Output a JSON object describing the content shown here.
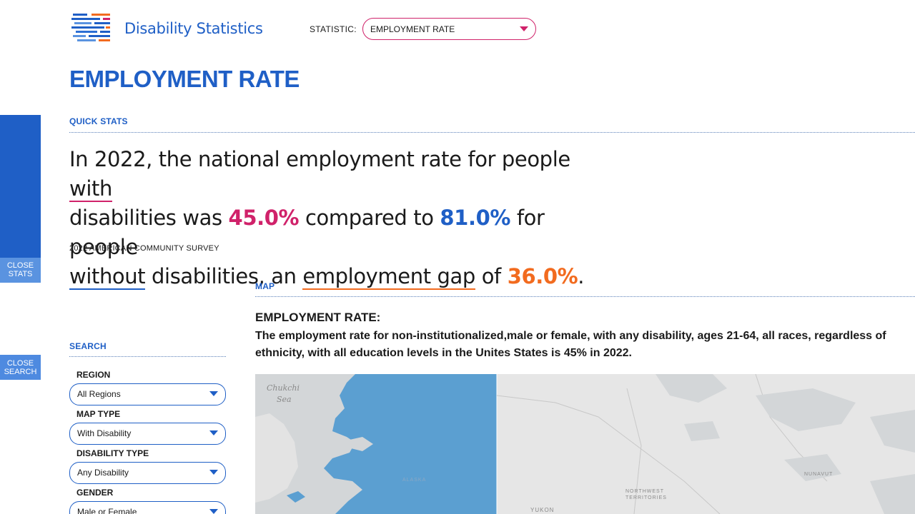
{
  "header": {
    "site_title": "Disability Statistics",
    "statistic_label": "STATISTIC:",
    "statistic_value": "EMPLOYMENT RATE",
    "accent_color": "#d0226a",
    "brand_color": "#1f5fc6"
  },
  "page_title": "EMPLOYMENT RATE",
  "side_tabs": {
    "close_stats": [
      "CLOSE",
      "STATS"
    ],
    "close_search": [
      "CLOSE",
      "SEARCH"
    ]
  },
  "quick_stats": {
    "label": "QUICK STATS",
    "s1": "In 2022, the national employment rate for people ",
    "w_with": "with",
    "s2": "disabilities was ",
    "value_with": "45.0%",
    "s3": " compared to ",
    "value_without": "81.0%",
    "s4": " for people",
    "w_without": "without",
    "s5": " disabilities, an ",
    "w_gap": "employment gap",
    "s6": " of ",
    "value_gap": "36.0%",
    "s7": ".",
    "source": "2022 AMERICAN COMMUNITY SURVEY",
    "colors": {
      "with": "#d0226a",
      "without": "#1f5fc6",
      "gap": "#f26b1f"
    }
  },
  "map": {
    "label": "MAP",
    "heading": "EMPLOYMENT RATE:",
    "description_line1": "The employment rate for non-institutionalized,male or female, with any disability, ages 21-64, all races, regardless of",
    "description_line2": "ethnicity, with all education levels in the Unites States is 45% in 2022.",
    "place_labels": {
      "chukchi_1": "Chukchi",
      "chukchi_2": "Sea",
      "alaska": "ALASKA",
      "yukon": "YUKON",
      "northwest_1": "NORTHWEST",
      "northwest_2": "TERRITORIES",
      "nunavut": "NUNAVUT"
    }
  },
  "search": {
    "label": "SEARCH",
    "fields": [
      {
        "label": "REGION",
        "value": "All Regions"
      },
      {
        "label": "MAP TYPE",
        "value": "With Disability"
      },
      {
        "label": "DISABILITY TYPE",
        "value": "Any Disability"
      },
      {
        "label": "GENDER",
        "value": "Male or Female"
      }
    ]
  }
}
